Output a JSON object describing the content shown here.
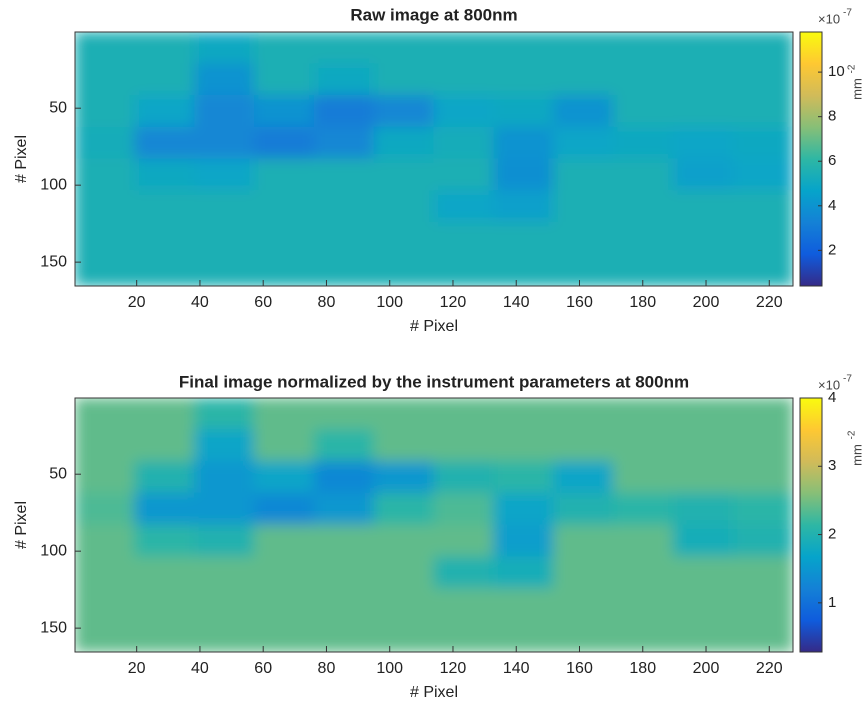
{
  "chart_data": [
    {
      "type": "heatmap",
      "title": "Raw image at 800nm",
      "xlabel": "# Pixel",
      "ylabel": "# Pixel",
      "xlim": [
        0.5,
        227.5
      ],
      "ylim": [
        0.5,
        165.5
      ],
      "y_reversed": true,
      "xticks": [
        20,
        40,
        60,
        80,
        100,
        120,
        140,
        160,
        180,
        200,
        220
      ],
      "yticks": [
        50,
        100,
        150
      ],
      "values": [
        [
          5.5,
          5.5,
          5,
          5.5,
          5.5,
          5.5,
          5.5,
          5.5,
          5.5,
          5.5,
          5.5,
          5.5
        ],
        [
          5.5,
          5.5,
          4,
          5.5,
          5,
          5.5,
          5.5,
          5.5,
          5.5,
          5.5,
          5.5,
          5.5
        ],
        [
          5.5,
          4.8,
          3.5,
          4,
          3,
          3.5,
          4.8,
          5,
          4,
          5.5,
          5.5,
          5.5
        ],
        [
          5.3,
          3.5,
          3.5,
          3,
          3.5,
          5,
          5.3,
          4,
          4.8,
          5,
          4.8,
          5
        ],
        [
          5.5,
          5,
          4.8,
          5.5,
          5.5,
          5.5,
          5.5,
          3.8,
          5.5,
          5.5,
          4.5,
          4.8
        ],
        [
          5.5,
          5.5,
          5.5,
          5.5,
          5.5,
          5.5,
          4.8,
          4.5,
          5.5,
          5.5,
          5.5,
          5.5
        ],
        [
          5.5,
          5.5,
          5.5,
          5.5,
          5.5,
          5.5,
          5.5,
          5.5,
          5.5,
          5.5,
          5.5,
          5.5
        ],
        [
          5.5,
          5.5,
          5.5,
          5.5,
          5.5,
          5.5,
          5.5,
          5.5,
          5.5,
          5.5,
          5.5,
          5.5
        ]
      ],
      "clim": [
        0.4,
        11.8
      ],
      "cticks": [
        2,
        4,
        6,
        8,
        10
      ],
      "colorbar_multiplier": "×10",
      "colorbar_exponent": "-7",
      "colorbar_unit": "mm",
      "colorbar_unit_exponent": "-2",
      "colormap": [
        "#352a87",
        "#0f5cdd",
        "#1481d6",
        "#06a4ca",
        "#2eb7a4",
        "#87bf77",
        "#d1bb59",
        "#fec832",
        "#f9fb0e"
      ]
    },
    {
      "type": "heatmap",
      "title": "Final image normalized by the instrument parameters at 800nm",
      "xlabel": "# Pixel",
      "ylabel": "# Pixel",
      "xlim": [
        0.5,
        227.5
      ],
      "ylim": [
        0.5,
        165.5
      ],
      "y_reversed": true,
      "xticks": [
        20,
        40,
        60,
        80,
        100,
        120,
        140,
        160,
        180,
        200,
        220
      ],
      "yticks": [
        50,
        100,
        150
      ],
      "values": [
        [
          2.4,
          2.4,
          2.1,
          2.4,
          2.4,
          2.4,
          2.4,
          2.4,
          2.4,
          2.4,
          2.4,
          2.4
        ],
        [
          2.4,
          2.4,
          1.7,
          2.4,
          2.1,
          2.4,
          2.4,
          2.4,
          2.4,
          2.4,
          2.4,
          2.4
        ],
        [
          2.4,
          2,
          1.5,
          1.7,
          1.3,
          1.5,
          2,
          2.1,
          1.7,
          2.4,
          2.4,
          2.4
        ],
        [
          2.3,
          1.5,
          1.5,
          1.3,
          1.5,
          2.1,
          2.3,
          1.7,
          2,
          2.1,
          2,
          2.1
        ],
        [
          2.4,
          2.1,
          2,
          2.4,
          2.4,
          2.4,
          2.4,
          1.6,
          2.4,
          2.4,
          1.9,
          2
        ],
        [
          2.4,
          2.4,
          2.4,
          2.4,
          2.4,
          2.4,
          2,
          1.9,
          2.4,
          2.4,
          2.4,
          2.4
        ],
        [
          2.4,
          2.4,
          2.4,
          2.4,
          2.4,
          2.4,
          2.4,
          2.4,
          2.4,
          2.4,
          2.4,
          2.4
        ],
        [
          2.4,
          2.4,
          2.4,
          2.4,
          2.4,
          2.4,
          2.4,
          2.4,
          2.4,
          2.4,
          2.4,
          2.4
        ]
      ],
      "clim": [
        0.28,
        4
      ],
      "cticks": [
        1,
        2,
        3,
        4
      ],
      "colorbar_multiplier": "×10",
      "colorbar_exponent": "-7",
      "colorbar_unit": "mm",
      "colorbar_unit_exponent": "-2",
      "colormap": [
        "#352a87",
        "#0f5cdd",
        "#1481d6",
        "#06a4ca",
        "#2eb7a4",
        "#87bf77",
        "#d1bb59",
        "#fec832",
        "#f9fb0e"
      ]
    }
  ]
}
